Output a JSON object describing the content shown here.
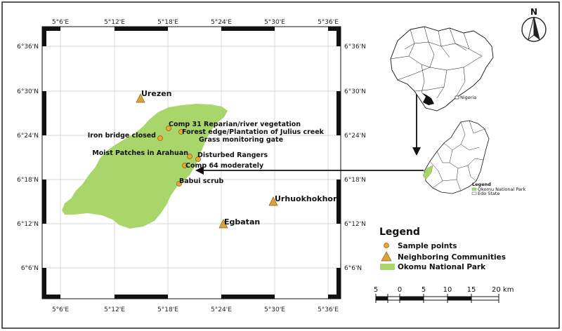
{
  "map": {
    "lon_labels": [
      "5°6'E",
      "5°12'E",
      "5°18'E",
      "5°24'E",
      "5°30'E",
      "5°36'E"
    ],
    "lat_labels": [
      "6°36'N",
      "6°30'N",
      "6°24'N",
      "6°18'N",
      "6°12'N",
      "6°6'N"
    ],
    "sample_points": [
      {
        "label": "Comp 31 Reparian/river vegetation"
      },
      {
        "label": "Forest edge/Plantation of Julius creek"
      },
      {
        "label": "Grass monitoring gate"
      },
      {
        "label": "Iron bridge closed"
      },
      {
        "label": "Moist Patches in Arahuan"
      },
      {
        "label": "Disturbed Rangers"
      },
      {
        "label": "Comp 64 moderately"
      },
      {
        "label": "Babui scrub"
      }
    ],
    "communities": [
      {
        "label": "Urezen"
      },
      {
        "label": "Urhuokhokhor"
      },
      {
        "label": "Egbatan"
      }
    ],
    "colors": {
      "park": "#a8d66a",
      "point": "#e8a832",
      "community": "#d9a23a"
    }
  },
  "legend": {
    "title": "Legend",
    "items": [
      {
        "label": "Sample points"
      },
      {
        "label": "Neighboring Communities"
      },
      {
        "label": "Okomu National Park"
      }
    ]
  },
  "inset_nigeria": {
    "label": "Nigeria"
  },
  "inset_edo": {
    "legend_title": "Legend",
    "items": [
      "Okomu National Park",
      "Edo State"
    ]
  },
  "north_arrow": {
    "label": "N"
  },
  "scale_bar": {
    "ticks": [
      "5",
      "0",
      "5",
      "10",
      "15",
      "20 km"
    ]
  }
}
